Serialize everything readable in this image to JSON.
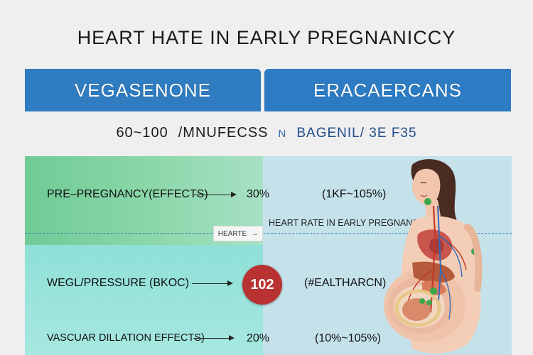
{
  "title": "HEART  HATE IN EARLY  PREGNANICCY",
  "headers": {
    "left": "VEGASENONE",
    "right": "ERACAERCANS"
  },
  "subline": {
    "range": "60~100",
    "unit": "/MNUFECSS",
    "separator": "N",
    "right_text": "BAGENIL/ 3E F35"
  },
  "divider": {
    "tag_label": "HEARTE",
    "tag_arrow": "→",
    "caption": "HEART RATE IN EARLY PREGNANCY"
  },
  "rows": [
    {
      "label": "PRE–PREGNANCY(EFFECTS)",
      "value": "30%",
      "right": "(1KF~105%)"
    },
    {
      "label": "WEGL/PRESSURE (BKOC)",
      "value": "102",
      "right": "(#EALTHARCN)"
    },
    {
      "label": "VASCUAR DILLATION EFFECTS)",
      "value": "20%",
      "right": "(10%~105%)"
    }
  ],
  "colors": {
    "header_blue": "#2f7cc0",
    "green_panel": "#7fd3a2",
    "aqua_panel": "#a6e8e0",
    "blue_panel": "#c5e2ea",
    "badge_red": "#b83232"
  },
  "icons": {
    "figure": "pregnant-woman-anatomy-illustration"
  }
}
